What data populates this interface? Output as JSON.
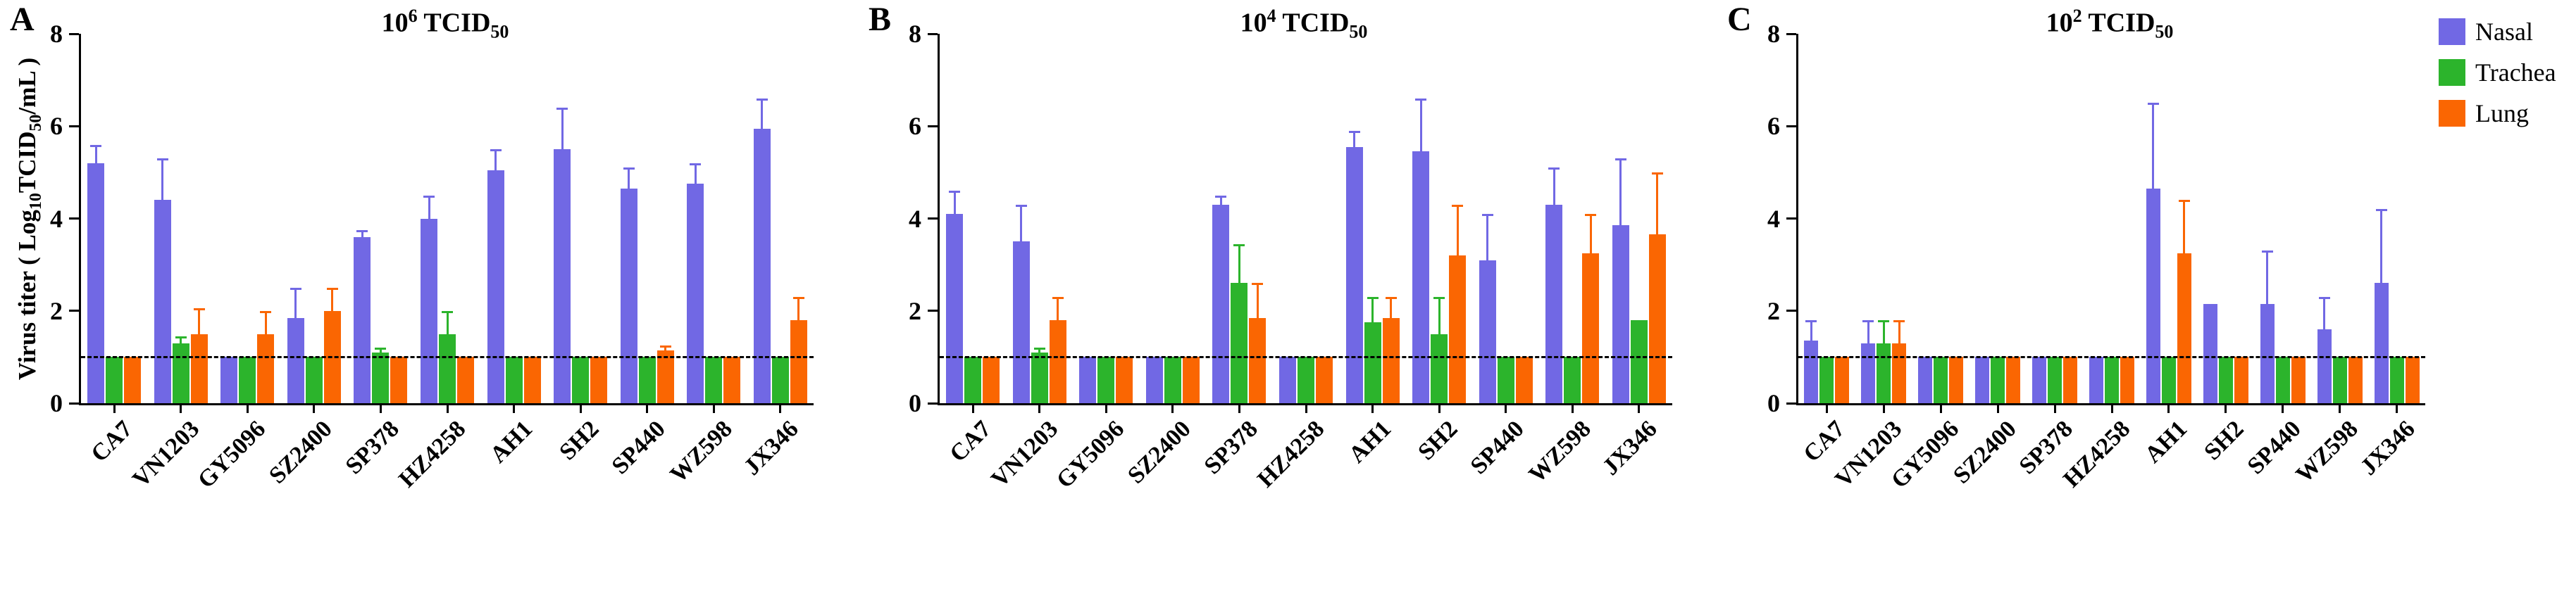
{
  "legend": {
    "items": [
      {
        "label": "Nasal",
        "color": "#7168e4"
      },
      {
        "label": "Trachea",
        "color": "#2cb42c"
      },
      {
        "label": "Lung",
        "color": "#fa6602"
      }
    ]
  },
  "chart_data": [
    {
      "type": "bar",
      "panel_letter": "A",
      "title": {
        "base": "10",
        "exp": "6",
        "unit": "TCID",
        "unit_sub": "50"
      },
      "title_text": "10^6 TCID50",
      "ylabel_text": "Virus titer ( Log10TCID50/mL )",
      "ylabel_parts": {
        "pre": "Virus titer ( Log",
        "sub1": "10",
        "mid": "TCID",
        "sub2": "50",
        "post": "/mL )"
      },
      "categories": [
        "CA7",
        "VN1203",
        "GY5096",
        "SZ2400",
        "SP378",
        "HZ4258",
        "AH1",
        "SH2",
        "SP440",
        "WZ598",
        "JX346"
      ],
      "ylim": [
        0,
        8
      ],
      "yticks": [
        0,
        2,
        4,
        6,
        8
      ],
      "dashed_line_y": 1,
      "legend_position": "top-right-of-figure",
      "grid": false,
      "series": [
        {
          "name": "Nasal",
          "color": "#7168e4",
          "values": [
            5.2,
            4.4,
            1.0,
            1.85,
            3.6,
            4.0,
            5.05,
            5.5,
            4.65,
            4.75,
            5.95
          ],
          "errors": [
            0.4,
            0.9,
            0.0,
            0.65,
            0.15,
            0.5,
            0.45,
            0.9,
            0.45,
            0.45,
            0.65
          ]
        },
        {
          "name": "Trachea",
          "color": "#2cb42c",
          "values": [
            1.0,
            1.3,
            1.0,
            1.0,
            1.1,
            1.5,
            1.0,
            1.0,
            1.0,
            1.0,
            1.0
          ],
          "errors": [
            0.0,
            0.15,
            0.0,
            0.0,
            0.1,
            0.5,
            0.0,
            0.0,
            0.0,
            0.0,
            0.0
          ]
        },
        {
          "name": "Lung",
          "color": "#fa6602",
          "values": [
            1.0,
            1.5,
            1.5,
            2.0,
            1.0,
            1.0,
            1.0,
            1.0,
            1.15,
            1.0,
            1.8
          ],
          "errors": [
            0.0,
            0.55,
            0.5,
            0.5,
            0.0,
            0.0,
            0.0,
            0.0,
            0.1,
            0.0,
            0.5
          ]
        }
      ]
    },
    {
      "type": "bar",
      "panel_letter": "B",
      "title": {
        "base": "10",
        "exp": "4",
        "unit": "TCID",
        "unit_sub": "50"
      },
      "title_text": "10^4 TCID50",
      "categories": [
        "CA7",
        "VN1203",
        "GY5096",
        "SZ2400",
        "SP378",
        "HZ4258",
        "AH1",
        "SH2",
        "SP440",
        "WZ598",
        "JX346"
      ],
      "ylim": [
        0,
        8
      ],
      "yticks": [
        0,
        2,
        4,
        6,
        8
      ],
      "dashed_line_y": 1,
      "grid": false,
      "series": [
        {
          "name": "Nasal",
          "color": "#7168e4",
          "values": [
            4.1,
            3.5,
            1.0,
            1.0,
            4.3,
            1.0,
            5.55,
            5.45,
            3.1,
            4.3,
            3.85
          ],
          "errors": [
            0.5,
            0.8,
            0.0,
            0.0,
            0.2,
            0.0,
            0.35,
            1.15,
            1.0,
            0.8,
            1.45
          ]
        },
        {
          "name": "Trachea",
          "color": "#2cb42c",
          "values": [
            1.0,
            1.1,
            1.0,
            1.0,
            2.6,
            1.0,
            1.75,
            1.5,
            1.0,
            1.0,
            1.8
          ],
          "errors": [
            0.0,
            0.1,
            0.0,
            0.0,
            0.85,
            0.0,
            0.55,
            0.8,
            0.0,
            0.0,
            0.0
          ]
        },
        {
          "name": "Lung",
          "color": "#fa6602",
          "values": [
            1.0,
            1.8,
            1.0,
            1.0,
            1.85,
            1.0,
            1.85,
            3.2,
            1.0,
            3.25,
            3.65
          ],
          "errors": [
            0.0,
            0.5,
            0.0,
            0.0,
            0.75,
            0.0,
            0.45,
            1.1,
            0.0,
            0.85,
            1.35
          ]
        }
      ]
    },
    {
      "type": "bar",
      "panel_letter": "C",
      "title": {
        "base": "10",
        "exp": "2",
        "unit": "TCID",
        "unit_sub": "50"
      },
      "title_text": "10^2 TCID50",
      "categories": [
        "CA7",
        "VN1203",
        "GY5096",
        "SZ2400",
        "SP378",
        "HZ4258",
        "AH1",
        "SH2",
        "SP440",
        "WZ598",
        "JX346"
      ],
      "ylim": [
        0,
        8
      ],
      "yticks": [
        0,
        2,
        4,
        6,
        8
      ],
      "dashed_line_y": 1,
      "grid": false,
      "series": [
        {
          "name": "Nasal",
          "color": "#7168e4",
          "values": [
            1.35,
            1.3,
            1.0,
            1.0,
            1.0,
            1.0,
            4.65,
            2.15,
            2.15,
            1.6,
            2.6
          ],
          "errors": [
            0.45,
            0.5,
            0.0,
            0.0,
            0.0,
            0.0,
            1.85,
            0.0,
            1.15,
            0.7,
            1.6
          ]
        },
        {
          "name": "Trachea",
          "color": "#2cb42c",
          "values": [
            1.0,
            1.3,
            1.0,
            1.0,
            1.0,
            1.0,
            1.0,
            1.0,
            1.0,
            1.0,
            1.0
          ],
          "errors": [
            0.0,
            0.5,
            0.0,
            0.0,
            0.0,
            0.0,
            0.0,
            0.0,
            0.0,
            0.0,
            0.0
          ]
        },
        {
          "name": "Lung",
          "color": "#fa6602",
          "values": [
            1.0,
            1.3,
            1.0,
            1.0,
            1.0,
            1.0,
            3.25,
            1.0,
            1.0,
            1.0,
            1.0
          ],
          "errors": [
            0.0,
            0.5,
            0.0,
            0.0,
            0.0,
            0.0,
            1.15,
            0.0,
            0.0,
            0.0,
            0.0
          ]
        }
      ]
    }
  ]
}
